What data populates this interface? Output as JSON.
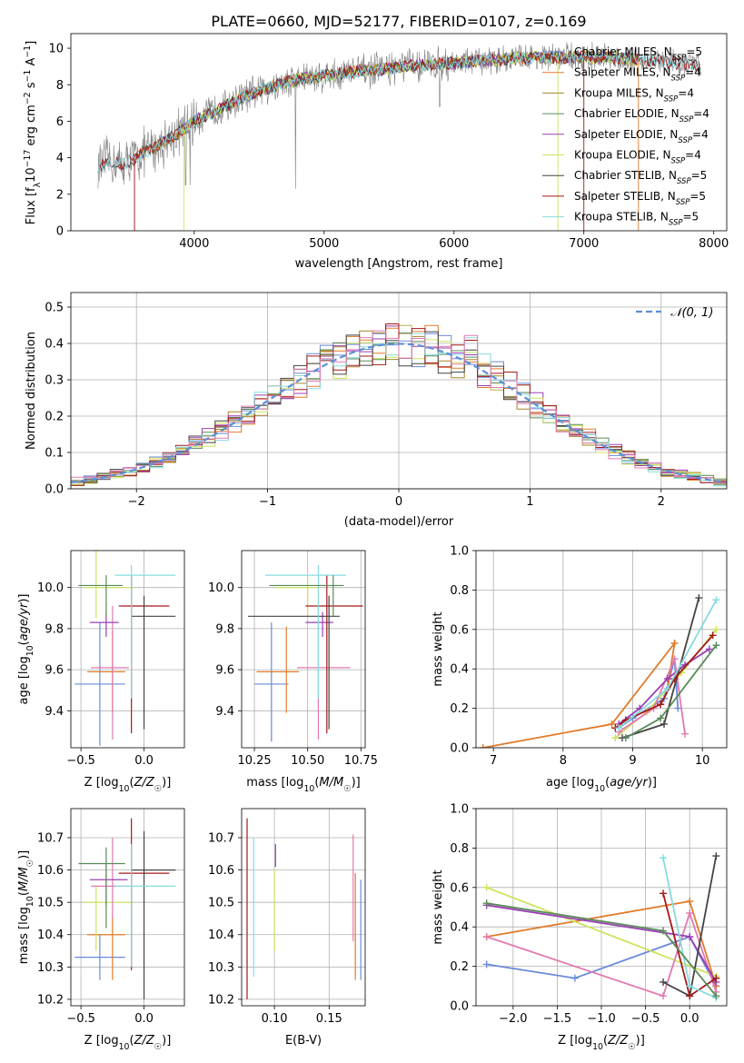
{
  "title": "PLATE=0660, MJD=52177, FIBERID=0107, z=0.169",
  "colors": {
    "Chabrier MILES": "#6a8ad9",
    "Salpeter MILES": "#e07b2a",
    "Kroupa MILES": "#a8862a",
    "Chabrier ELODIE": "#5a8a5a",
    "Salpeter ELODIE": "#9a3fb5",
    "Kroupa ELODIE": "#cde35a",
    "Chabrier STELIB": "#444444",
    "Salpeter STELIB": "#a51818",
    "Kroupa STELIB": "#86dbe0",
    "pink": "#e07ab0",
    "data": "#808080",
    "normal": "#5b8fd6"
  },
  "chart_data": [
    {
      "type": "line",
      "title": "PLATE=0660, MJD=52177, FIBERID=0107, z=0.169",
      "xlabel": "wavelength [Angstrom, rest frame]",
      "ylabel": "Flux [fλ10⁻¹⁷ erg cm⁻² s⁻¹ A⁻¹]",
      "xlim": [
        3050,
        8100
      ],
      "ylim": [
        0,
        10.8
      ],
      "xticks": [
        4000,
        5000,
        6000,
        7000,
        8000
      ],
      "yticks": [
        0,
        2,
        4,
        6,
        8,
        10
      ],
      "grid": false,
      "legend_position": "top-right",
      "legend": [
        {
          "name": "Chabrier MILES, N",
          "sub": "SSP",
          "suffix": "=5",
          "color": "#6a8ad9"
        },
        {
          "name": "Salpeter MILES, N",
          "sub": "SSP",
          "suffix": "=4",
          "color": "#e07b2a"
        },
        {
          "name": "Kroupa MILES, N",
          "sub": "SSP",
          "suffix": "=4",
          "color": "#a8862a"
        },
        {
          "name": "Chabrier ELODIE, N",
          "sub": "SSP",
          "suffix": "=4",
          "color": "#5a8a5a"
        },
        {
          "name": "Salpeter ELODIE, N",
          "sub": "SSP",
          "suffix": "=4",
          "color": "#9a3fb5"
        },
        {
          "name": "Kroupa ELODIE, N",
          "sub": "SSP",
          "suffix": "=4",
          "color": "#cde35a"
        },
        {
          "name": "Chabrier STELIB, N",
          "sub": "SSP",
          "suffix": "=5",
          "color": "#444444"
        },
        {
          "name": "Salpeter STELIB, N",
          "sub": "SSP",
          "suffix": "=5",
          "color": "#a51818"
        },
        {
          "name": "Kroupa STELIB, N",
          "sub": "SSP",
          "suffix": "=5",
          "color": "#86dbe0"
        }
      ],
      "continuum": [
        [
          3260,
          3.5
        ],
        [
          3350,
          3.8
        ],
        [
          3450,
          3.6
        ],
        [
          3550,
          4.0
        ],
        [
          3700,
          4.6
        ],
        [
          3850,
          5.2
        ],
        [
          4000,
          6.0
        ],
        [
          4200,
          6.7
        ],
        [
          4400,
          7.4
        ],
        [
          4600,
          7.9
        ],
        [
          4800,
          8.3
        ],
        [
          5000,
          8.5
        ],
        [
          5200,
          8.7
        ],
        [
          5400,
          8.8
        ],
        [
          5600,
          9.0
        ],
        [
          5800,
          9.1
        ],
        [
          6000,
          9.2
        ],
        [
          6200,
          9.3
        ],
        [
          6400,
          9.4
        ],
        [
          6600,
          9.5
        ],
        [
          6800,
          9.5
        ],
        [
          7000,
          9.5
        ],
        [
          7200,
          9.5
        ],
        [
          7400,
          9.4
        ],
        [
          7600,
          9.3
        ],
        [
          7800,
          9.1
        ],
        [
          7900,
          9.0
        ]
      ]
    },
    {
      "type": "step",
      "xlabel": "(data-model)/error",
      "ylabel": "Normed distribution",
      "xlim": [
        -2.5,
        2.5
      ],
      "ylim": [
        0,
        0.54
      ],
      "xticks": [
        -2,
        -1,
        0,
        1,
        2
      ],
      "yticks": [
        0.0,
        0.1,
        0.2,
        0.3,
        0.4,
        0.5
      ],
      "grid": true,
      "legend_position": "top-right",
      "legend_label": "𝒩(0, 1)",
      "bin_width": 0.1
    },
    {
      "type": "scatter",
      "xlabel": "Z [log10(Z/Z☉)]",
      "ylabel": "age  [log10(age/yr)]",
      "xlim": [
        -0.58,
        0.32
      ],
      "ylim": [
        9.22,
        10.18
      ],
      "xticks": [
        -0.5,
        0.0
      ],
      "yticks": [
        9.4,
        9.6,
        9.8,
        10.0
      ],
      "grid": true,
      "points": [
        {
          "x": -0.35,
          "y": 9.53,
          "xerr": [
            0.2,
            0.2
          ],
          "yerr": [
            0.3,
            0.3
          ],
          "color": "#6a8ad9"
        },
        {
          "x": -0.25,
          "y": 9.59,
          "xerr": [
            0.2,
            0.1
          ],
          "yerr": [
            0.2,
            0.2
          ],
          "color": "#e07b2a"
        },
        {
          "x": -0.38,
          "y": 10.0,
          "xerr": [
            0.1,
            0.3
          ],
          "yerr": [
            0.15,
            0.2
          ],
          "color": "#cde35a"
        },
        {
          "x": -0.25,
          "y": 9.61,
          "xerr": [
            0.17,
            0.13
          ],
          "yerr": [
            0.35,
            0.3
          ],
          "color": "#e07ab0"
        },
        {
          "x": -0.3,
          "y": 9.83,
          "xerr": [
            0.13,
            0.1
          ],
          "yerr": [
            0.07,
            0.05
          ],
          "color": "#9a3fb5"
        },
        {
          "x": -0.1,
          "y": 9.91,
          "xerr": [
            0.1,
            0.3
          ],
          "yerr": [
            0.62,
            0.15
          ],
          "color": "#a51818"
        },
        {
          "x": 0.0,
          "y": 9.86,
          "xerr": [
            0.1,
            0.25
          ],
          "yerr": [
            0.55,
            0.1
          ],
          "color": "#444444"
        },
        {
          "x": -0.1,
          "y": 10.06,
          "xerr": [
            0.13,
            0.35
          ],
          "yerr": [
            0.6,
            0.05
          ],
          "color": "#86dbe0"
        },
        {
          "x": -0.3,
          "y": 10.01,
          "xerr": [
            0.22,
            0.13
          ],
          "yerr": [
            0.15,
            0.05
          ],
          "color": "#5a8a5a"
        }
      ]
    },
    {
      "type": "scatter",
      "xlabel": "mass [log10(M/M☉)]",
      "ylabel": "",
      "xlim": [
        10.19,
        10.77
      ],
      "ylim": [
        9.22,
        10.18
      ],
      "xticks": [
        10.25,
        10.5,
        10.75
      ],
      "yticks": [
        9.4,
        9.6,
        9.8,
        10.0
      ],
      "grid": true,
      "points": [
        {
          "x": 10.33,
          "y": 9.53,
          "xerr": [
            0.08,
            0.08
          ],
          "yerr": [
            0.28,
            0.3
          ],
          "color": "#6a8ad9"
        },
        {
          "x": 10.4,
          "y": 9.59,
          "xerr": [
            0.14,
            0.06
          ],
          "yerr": [
            0.2,
            0.22
          ],
          "color": "#e07b2a"
        },
        {
          "x": 10.5,
          "y": 10.0,
          "xerr": [
            0.15,
            0.05
          ],
          "yerr": [
            0.15,
            0.05
          ],
          "color": "#cde35a"
        },
        {
          "x": 10.55,
          "y": 9.61,
          "xerr": [
            0.1,
            0.15
          ],
          "yerr": [
            0.35,
            0.3
          ],
          "color": "#e07ab0"
        },
        {
          "x": 10.57,
          "y": 9.83,
          "xerr": [
            0.08,
            0.05
          ],
          "yerr": [
            0.07,
            0.05
          ],
          "color": "#9a3fb5"
        },
        {
          "x": 10.59,
          "y": 9.91,
          "xerr": [
            0.1,
            0.17
          ],
          "yerr": [
            0.62,
            0.15
          ],
          "color": "#a51818"
        },
        {
          "x": 10.6,
          "y": 9.86,
          "xerr": [
            0.38,
            0.05
          ],
          "yerr": [
            0.55,
            0.1
          ],
          "color": "#444444"
        },
        {
          "x": 10.55,
          "y": 10.06,
          "xerr": [
            0.25,
            0.13
          ],
          "yerr": [
            0.6,
            0.05
          ],
          "color": "#86dbe0"
        },
        {
          "x": 10.62,
          "y": 10.01,
          "xerr": [
            0.3,
            0.05
          ],
          "yerr": [
            0.15,
            0.05
          ],
          "color": "#5a8a5a"
        }
      ]
    },
    {
      "type": "line",
      "xlabel": "age  [log10(age/yr)]",
      "ylabel": "mass weight",
      "xlim": [
        6.75,
        10.35
      ],
      "ylim": [
        0,
        1.0
      ],
      "xticks": [
        7,
        8,
        9,
        10
      ],
      "yticks": [
        0.0,
        0.2,
        0.4,
        0.6,
        0.8,
        1.0
      ],
      "grid": true,
      "series": [
        {
          "color": "#6a8ad9",
          "x": [
            8.8,
            9.0,
            9.45,
            9.6,
            9.65
          ],
          "y": [
            0.1,
            0.15,
            0.25,
            0.45,
            0.2
          ]
        },
        {
          "color": "#e07b2a",
          "x": [
            6.85,
            8.7,
            9.6,
            9.5
          ],
          "y": [
            0.0,
            0.12,
            0.53,
            0.3
          ]
        },
        {
          "color": "#cde35a",
          "x": [
            8.75,
            9.2,
            9.7,
            10.2
          ],
          "y": [
            0.05,
            0.18,
            0.38,
            0.6
          ]
        },
        {
          "color": "#e07ab0",
          "x": [
            8.8,
            9.3,
            9.6,
            9.75
          ],
          "y": [
            0.08,
            0.2,
            0.45,
            0.07
          ]
        },
        {
          "color": "#9a3fb5",
          "x": [
            8.8,
            9.1,
            9.5,
            9.75,
            10.1
          ],
          "y": [
            0.12,
            0.2,
            0.35,
            0.42,
            0.5
          ]
        },
        {
          "color": "#444444",
          "x": [
            8.85,
            9.45,
            9.95
          ],
          "y": [
            0.05,
            0.12,
            0.76
          ]
        },
        {
          "color": "#a51818",
          "x": [
            8.75,
            8.9,
            9.4,
            9.6,
            10.15
          ],
          "y": [
            0.1,
            0.14,
            0.22,
            0.35,
            0.57
          ]
        },
        {
          "color": "#86dbe0",
          "x": [
            8.8,
            9.5,
            10.2
          ],
          "y": [
            0.1,
            0.3,
            0.75
          ]
        },
        {
          "color": "#5a8a5a",
          "x": [
            8.9,
            9.4,
            10.2
          ],
          "y": [
            0.05,
            0.15,
            0.52
          ]
        }
      ]
    },
    {
      "type": "scatter",
      "xlabel": "Z [log10(Z/Z☉)]",
      "ylabel": "mass [log10(M/M☉)]",
      "xlim": [
        -0.58,
        0.32
      ],
      "ylim": [
        10.18,
        10.79
      ],
      "xticks": [
        -0.5,
        0.0
      ],
      "yticks": [
        10.2,
        10.3,
        10.4,
        10.5,
        10.6,
        10.7
      ],
      "grid": true,
      "points": [
        {
          "x": -0.35,
          "y": 10.33,
          "xerr": [
            0.2,
            0.2
          ],
          "yerr": [
            0.07,
            0.07
          ],
          "color": "#6a8ad9"
        },
        {
          "x": -0.25,
          "y": 10.4,
          "xerr": [
            0.2,
            0.1
          ],
          "yerr": [
            0.14,
            0.06
          ],
          "color": "#e07b2a"
        },
        {
          "x": -0.38,
          "y": 10.5,
          "xerr": [
            0.1,
            0.3
          ],
          "yerr": [
            0.15,
            0.05
          ],
          "color": "#cde35a"
        },
        {
          "x": -0.25,
          "y": 10.55,
          "xerr": [
            0.17,
            0.13
          ],
          "yerr": [
            0.1,
            0.15
          ],
          "color": "#e07ab0"
        },
        {
          "x": -0.3,
          "y": 10.57,
          "xerr": [
            0.13,
            0.17
          ],
          "yerr": [
            0.08,
            0.05
          ],
          "color": "#9a3fb5"
        },
        {
          "x": -0.1,
          "y": 10.59,
          "xerr": [
            0.1,
            0.3
          ],
          "yerr": [
            0.3,
            0.17
          ],
          "color": "#a51818"
        },
        {
          "x": 0.0,
          "y": 10.6,
          "xerr": [
            0.1,
            0.25
          ],
          "yerr": [
            0.4,
            0.12
          ],
          "color": "#444444"
        },
        {
          "x": -0.1,
          "y": 10.55,
          "xerr": [
            0.13,
            0.35
          ],
          "yerr": [
            0.25,
            0.13
          ],
          "color": "#86dbe0"
        },
        {
          "x": -0.3,
          "y": 10.62,
          "xerr": [
            0.22,
            0.15
          ],
          "yerr": [
            0.2,
            0.05
          ],
          "color": "#5a8a5a"
        }
      ]
    },
    {
      "type": "scatter",
      "xlabel": "E(B-V)",
      "ylabel": "",
      "xlim": [
        0.07,
        0.183
      ],
      "ylim": [
        10.18,
        10.79
      ],
      "xticks": [
        0.1,
        0.15
      ],
      "yticks": [
        10.2,
        10.3,
        10.4,
        10.5,
        10.6,
        10.7
      ],
      "grid": true,
      "points": [
        {
          "x": 0.075,
          "y": 10.5,
          "xerr": [
            0,
            0
          ],
          "yerr": [
            0.3,
            0.26
          ],
          "color": "#a51818"
        },
        {
          "x": 0.081,
          "y": 10.48,
          "xerr": [
            0,
            0
          ],
          "yerr": [
            0.21,
            0.22
          ],
          "color": "#86dbe0"
        },
        {
          "x": 0.1,
          "y": 10.48,
          "xerr": [
            0,
            0
          ],
          "yerr": [
            0.13,
            0.12
          ],
          "color": "#cde35a"
        },
        {
          "x": 0.101,
          "y": 10.65,
          "xerr": [
            0,
            0
          ],
          "yerr": [
            0.04,
            0.03
          ],
          "color": "#9a3fb5"
        },
        {
          "x": 0.172,
          "y": 10.55,
          "xerr": [
            0,
            0
          ],
          "yerr": [
            0.17,
            0.16
          ],
          "color": "#e07ab0"
        },
        {
          "x": 0.174,
          "y": 10.42,
          "xerr": [
            0,
            0
          ],
          "yerr": [
            0.16,
            0.17
          ],
          "color": "#e07b2a"
        },
        {
          "x": 0.179,
          "y": 10.41,
          "xerr": [
            0,
            0
          ],
          "yerr": [
            0.15,
            0.16
          ],
          "color": "#6a8ad9"
        }
      ]
    },
    {
      "type": "line",
      "xlabel": "Z [log10(Z/Z☉)]",
      "ylabel": "mass weight",
      "xlim": [
        -2.42,
        0.42
      ],
      "ylim": [
        0,
        1.0
      ],
      "xticks": [
        -2.0,
        -1.5,
        -1.0,
        -0.5,
        0.0
      ],
      "yticks": [
        0.0,
        0.2,
        0.4,
        0.6,
        0.8,
        1.0
      ],
      "grid": true,
      "series": [
        {
          "color": "#6a8ad9",
          "x": [
            -2.3,
            -1.3,
            0.0,
            0.3
          ],
          "y": [
            0.21,
            0.14,
            0.35,
            0.1
          ]
        },
        {
          "color": "#e07b2a",
          "x": [
            -2.3,
            0.0,
            0.3
          ],
          "y": [
            0.35,
            0.53,
            0.1
          ]
        },
        {
          "color": "#cde35a",
          "x": [
            -2.3,
            0.3
          ],
          "y": [
            0.6,
            0.15
          ]
        },
        {
          "color": "#e07ab0",
          "x": [
            -2.3,
            -0.3,
            0.0,
            0.3
          ],
          "y": [
            0.35,
            0.05,
            0.47,
            0.07
          ]
        },
        {
          "color": "#9a3fb5",
          "x": [
            -2.3,
            0.0,
            0.3
          ],
          "y": [
            0.51,
            0.35,
            0.12
          ]
        },
        {
          "color": "#444444",
          "x": [
            -0.3,
            0.0,
            0.3
          ],
          "y": [
            0.12,
            0.05,
            0.76
          ]
        },
        {
          "color": "#a51818",
          "x": [
            -0.3,
            0.0,
            0.3
          ],
          "y": [
            0.57,
            0.05,
            0.14
          ]
        },
        {
          "color": "#86dbe0",
          "x": [
            -0.3,
            0.0,
            0.3
          ],
          "y": [
            0.75,
            0.1,
            0.04
          ]
        },
        {
          "color": "#5a8a5a",
          "x": [
            -2.3,
            -0.3,
            0.3
          ],
          "y": [
            0.52,
            0.38,
            0.05
          ]
        }
      ]
    }
  ]
}
